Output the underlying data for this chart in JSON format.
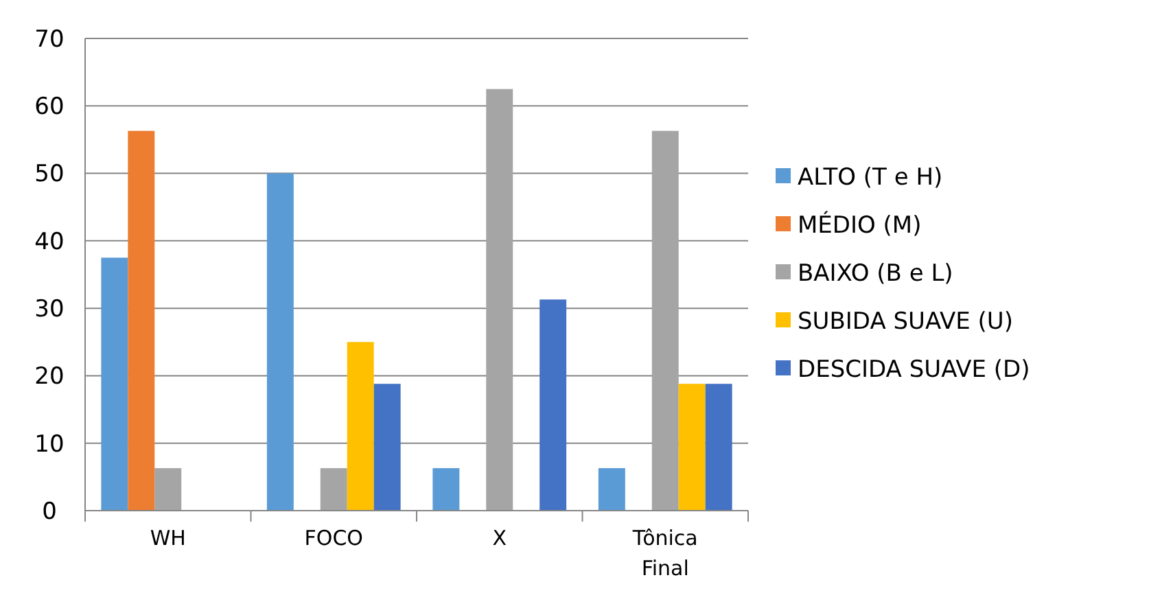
{
  "chart_data": {
    "type": "bar",
    "categories": [
      "WH",
      "FOCO",
      "X",
      "Tônica Final"
    ],
    "series": [
      {
        "name": "ALTO (T e H)",
        "color": "#5b9bd5",
        "values": [
          37.5,
          50,
          6.3,
          6.3
        ]
      },
      {
        "name": "MÉDIO (M)",
        "color": "#ed7d31",
        "values": [
          56.3,
          0,
          0,
          0
        ]
      },
      {
        "name": "BAIXO (B e L)",
        "color": "#a5a5a5",
        "values": [
          6.3,
          6.3,
          62.5,
          56.3
        ]
      },
      {
        "name": "SUBIDA SUAVE (U)",
        "color": "#ffc000",
        "values": [
          0,
          25,
          0,
          18.8
        ]
      },
      {
        "name": "DESCIDA SUAVE (D)",
        "color": "#4472c4",
        "values": [
          0,
          18.8,
          31.3,
          18.8
        ]
      }
    ],
    "ylim": [
      0,
      70
    ],
    "yticks": [
      0,
      10,
      20,
      30,
      40,
      50,
      60,
      70
    ],
    "grid": "y",
    "legend": "right"
  }
}
